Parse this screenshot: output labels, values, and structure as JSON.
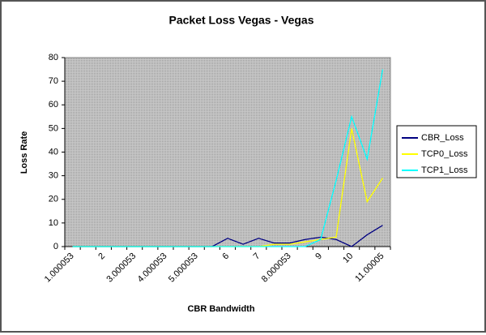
{
  "chart_data": {
    "type": "line",
    "title": "Packet Loss Vegas - Vegas",
    "x_label": "CBR Bandwidth",
    "y_label": "Loss Rate",
    "categories": [
      "1.000053",
      null,
      "2",
      null,
      "3.000053",
      null,
      "4.000053",
      null,
      "5.000053",
      null,
      "6",
      null,
      "7",
      null,
      "8.000053",
      null,
      "9",
      null,
      "10",
      null,
      "11.00005"
    ],
    "series": [
      {
        "name": "CBR_Loss",
        "color": "#000080",
        "values": [
          0,
          0,
          0,
          0,
          0,
          0,
          0,
          0,
          0,
          0,
          3.5,
          1,
          3.5,
          1.5,
          1.5,
          3,
          4,
          3,
          0,
          5,
          9
        ]
      },
      {
        "name": "TCP0_Loss",
        "color": "#ffff00",
        "values": [
          0,
          0,
          0,
          0,
          0,
          0,
          0,
          0,
          0,
          0,
          0,
          0,
          0,
          1,
          1,
          2,
          3,
          4,
          50,
          19,
          29
        ]
      },
      {
        "name": "TCP1_Loss",
        "color": "#00ffff",
        "values": [
          0,
          0,
          0,
          0,
          0,
          0,
          0,
          0,
          0,
          0,
          0,
          0,
          0,
          0,
          0,
          0,
          3,
          28,
          55,
          37,
          75
        ]
      }
    ],
    "ylim": [
      0,
      80
    ],
    "yticks": [
      0,
      10,
      20,
      30,
      40,
      50,
      60,
      70,
      80
    ],
    "grid": false,
    "legend": "right"
  }
}
